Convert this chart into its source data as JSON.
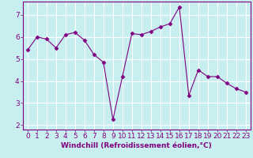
{
  "x": [
    0,
    1,
    2,
    3,
    4,
    5,
    6,
    7,
    8,
    9,
    10,
    11,
    12,
    13,
    14,
    15,
    16,
    17,
    18,
    19,
    20,
    21,
    22,
    23
  ],
  "y": [
    5.4,
    6.0,
    5.9,
    5.5,
    6.1,
    6.2,
    5.85,
    5.2,
    4.85,
    2.25,
    4.2,
    6.15,
    6.1,
    6.25,
    6.45,
    6.6,
    7.35,
    3.35,
    4.5,
    4.2,
    4.2,
    3.9,
    3.65,
    3.5
  ],
  "line_color": "#800080",
  "marker": "D",
  "markersize": 2.5,
  "linewidth": 0.8,
  "xlabel": "Windchill (Refroidissement éolien,°C)",
  "xlim": [
    -0.5,
    23.5
  ],
  "ylim": [
    1.8,
    7.6
  ],
  "xticks": [
    0,
    1,
    2,
    3,
    4,
    5,
    6,
    7,
    8,
    9,
    10,
    11,
    12,
    13,
    14,
    15,
    16,
    17,
    18,
    19,
    20,
    21,
    22,
    23
  ],
  "yticks": [
    2,
    3,
    4,
    5,
    6,
    7
  ],
  "bg_color": "#c8eef0",
  "grid_color": "#ffffff",
  "axis_color": "#800080",
  "tick_color": "#800080",
  "xlabel_fontsize": 6.5,
  "tick_fontsize": 6.5
}
